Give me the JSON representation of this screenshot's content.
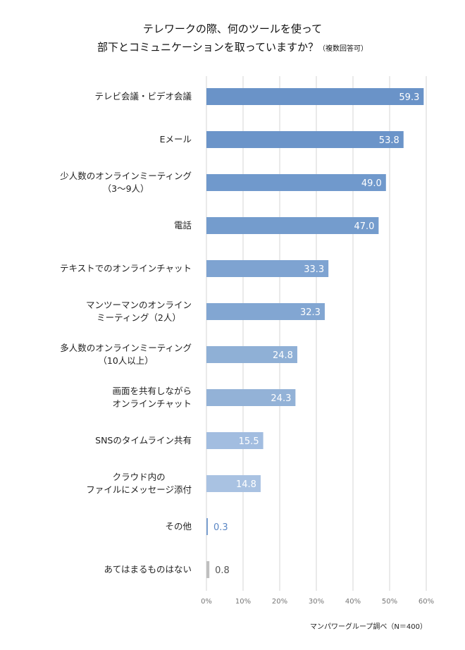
{
  "chart_data": {
    "type": "bar",
    "orientation": "horizontal",
    "title_line1": "テレワークの際、何のツールを使って",
    "title_line2": "部下とコミュニケーションを取っていますか？",
    "title_note": "（複数回答可）",
    "categories": [
      "テレビ会議・ビデオ会議",
      "Eメール",
      "少人数のオンラインミーティング\n（3～9人）",
      "電話",
      "テキストでのオンラインチャット",
      "マンツーマンのオンライン\nミーティング（2人）",
      "多人数のオンラインミーティング\n（10人以上）",
      "画面を共有しながら\nオンラインチャット",
      "SNSのタイムライン共有",
      "クラウド内の\nファイルにメッセージ添付",
      "その他",
      "あてはまるものはない"
    ],
    "values": [
      59.3,
      53.8,
      49.0,
      47.0,
      33.3,
      32.3,
      24.8,
      24.3,
      15.5,
      14.8,
      0.3,
      0.8
    ],
    "value_labels": [
      "59.3",
      "53.8",
      "49.0",
      "47.0",
      "33.3",
      "32.3",
      "24.8",
      "24.3",
      "15.5",
      "14.8",
      "0.3",
      "0.8"
    ],
    "colors": [
      "#6a93c8",
      "#6b94c9",
      "#7099cc",
      "#749ccd",
      "#7ea3d1",
      "#82a6d2",
      "#8fb0d6",
      "#93b2d7",
      "#a2bde0",
      "#a9c2e2",
      "#7a9fd0",
      "#bfbfbf"
    ],
    "xlim": [
      0,
      60
    ],
    "xticks": [
      "0%",
      "10%",
      "20%",
      "30%",
      "40%",
      "50%",
      "60%"
    ],
    "grid": true,
    "source": "マンパワーグループ調べ（N＝400）"
  }
}
